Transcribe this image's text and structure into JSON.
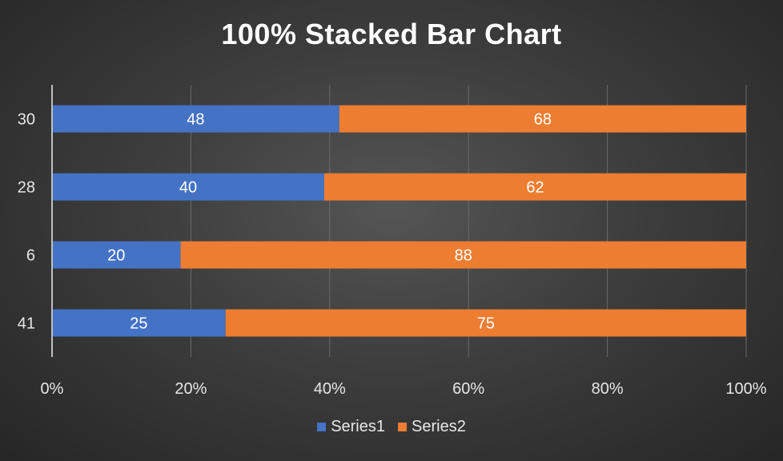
{
  "chart_data": {
    "type": "bar",
    "orientation": "horizontal",
    "stacking": "percent",
    "title": "100% Stacked Bar Chart",
    "categories": [
      "41",
      "6",
      "28",
      "30"
    ],
    "series": [
      {
        "name": "Series1",
        "values": [
          25,
          20,
          40,
          48
        ],
        "color": "#4472C4"
      },
      {
        "name": "Series2",
        "values": [
          75,
          88,
          62,
          68
        ],
        "color": "#ED7D31"
      }
    ],
    "x_ticks": [
      "0%",
      "20%",
      "40%",
      "60%",
      "80%",
      "100%"
    ],
    "xlim": [
      0,
      100
    ],
    "grid": "vertical",
    "legend_position": "bottom",
    "data_labels": true
  }
}
